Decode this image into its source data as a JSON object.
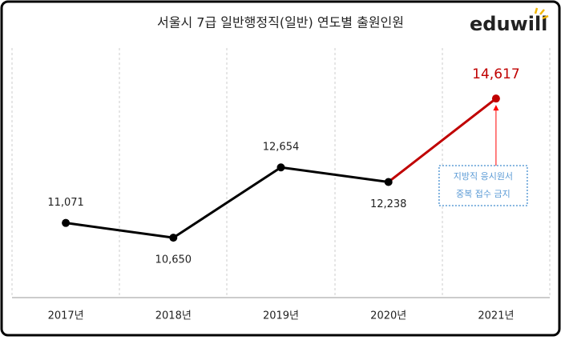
{
  "chart_data": {
    "type": "line",
    "title": "서울시 7급 일반행정직(일반) 연도별 출원인원",
    "brand": "eduwill",
    "categories": [
      "2017년",
      "2018년",
      "2019년",
      "2020년",
      "2021년"
    ],
    "series": [
      {
        "name": "출원인원",
        "color": "#000000",
        "point_colors": [
          "#000000",
          "#000000",
          "#000000",
          "#000000",
          "#c00000"
        ],
        "values": [
          11071,
          10650,
          12654,
          12238,
          14617
        ],
        "value_labels": [
          "11,071",
          "10,650",
          "12,654",
          "12,238",
          "14,617"
        ]
      }
    ],
    "ylim": [
      9000,
      16000
    ],
    "annotation": {
      "lines": [
        "지방직 응시원서",
        "중복 접수 금지"
      ],
      "color": "#5b9bd5",
      "arrow_color": "#ff0000"
    }
  }
}
